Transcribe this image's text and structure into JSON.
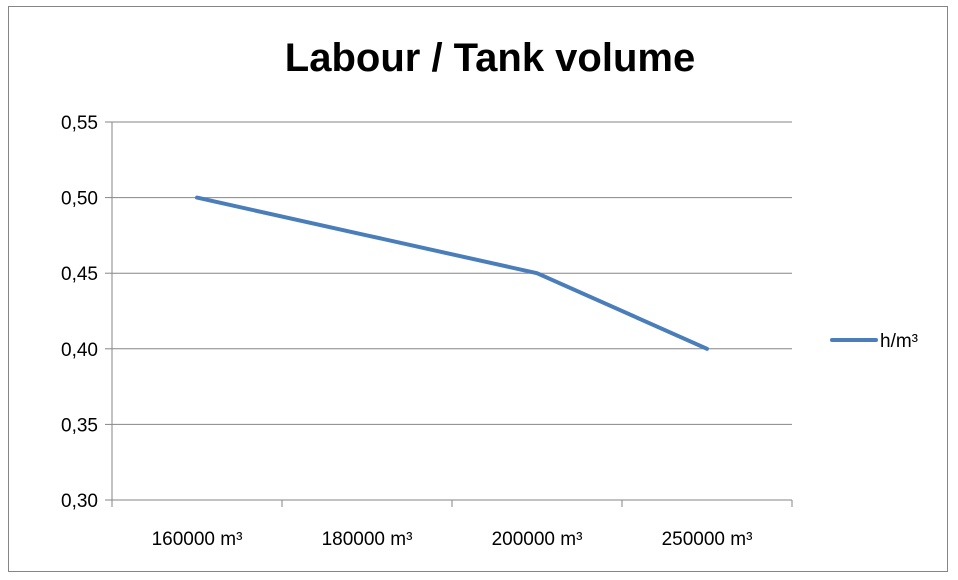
{
  "chart_data": {
    "type": "line",
    "title": "Labour / Tank volume",
    "xlabel": "",
    "ylabel": "",
    "categories": [
      "160000 m³",
      "180000 m³",
      "200000 m³",
      "250000 m³"
    ],
    "series": [
      {
        "name": "h/m³",
        "values": [
          0.5,
          0.475,
          0.45,
          0.4
        ],
        "color": "#4A7EBB"
      }
    ],
    "ylim": [
      0.3,
      0.55
    ],
    "yticks": [
      0.3,
      0.35,
      0.4,
      0.45,
      0.5,
      0.55
    ],
    "ytick_labels": [
      "0,30",
      "0,35",
      "0,40",
      "0,45",
      "0,50",
      "0,55"
    ],
    "grid": "horizontal",
    "legend_position": "right"
  }
}
